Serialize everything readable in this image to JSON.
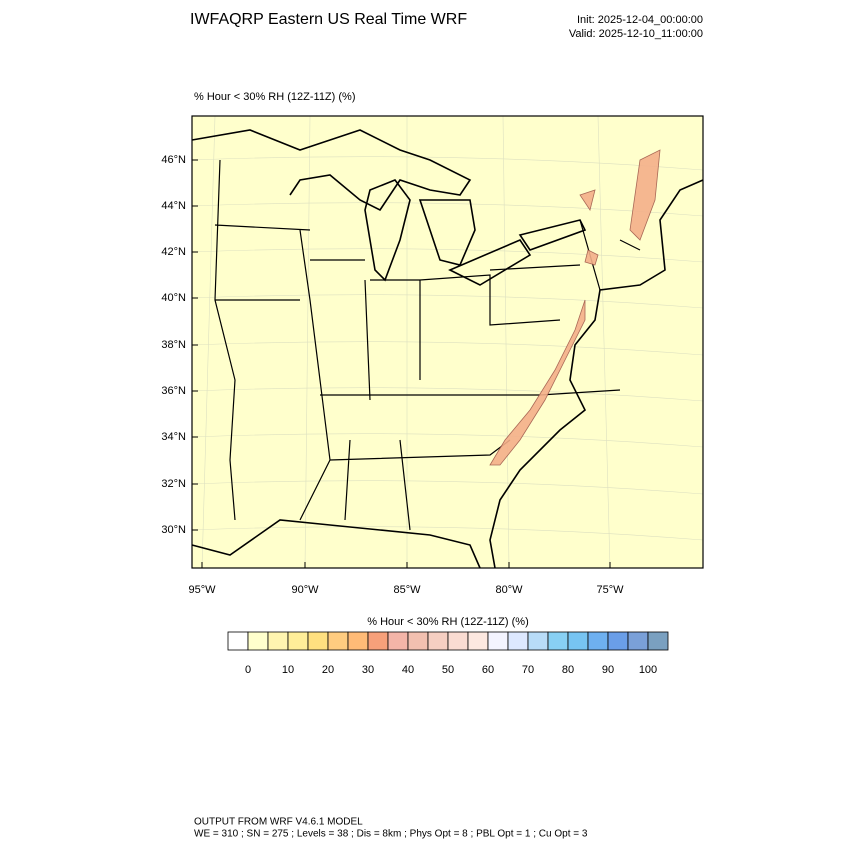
{
  "title": "IWFAQRP Eastern US Real Time WRF",
  "init": "Init: 2025-12-04_00:00:00",
  "valid": "Valid: 2025-12-10_11:00:00",
  "map": {
    "subtitle": "% Hour < 30% RH (12Z-11Z)   (%)",
    "lat_labels": [
      "46°N",
      "44°N",
      "42°N",
      "40°N",
      "38°N",
      "36°N",
      "34°N",
      "32°N",
      "30°N"
    ],
    "lon_labels": [
      "95°W",
      "90°W",
      "85°W",
      "80°W",
      "75°W"
    ]
  },
  "colorbar": {
    "title": "% Hour < 30% RH (12Z-11Z)  (%)",
    "ticks": [
      0,
      10,
      20,
      30,
      40,
      50,
      60,
      70,
      80,
      90,
      100
    ],
    "colors": [
      "#ffffff",
      "#ffffcc",
      "#fff5b0",
      "#ffee99",
      "#ffe080",
      "#ffcc80",
      "#ffbb77",
      "#f7a07a",
      "#f4b5a8",
      "#f2c0b0",
      "#f6cfc2",
      "#fadcd2",
      "#fde8e0",
      "#f4f4ff",
      "#dde8ff",
      "#b8dcf8",
      "#88d0f4",
      "#77c4f2",
      "#6eb0f0",
      "#6a9ee8",
      "#7aa0d8",
      "#7aa0c0"
    ]
  },
  "footer": [
    "OUTPUT FROM WRF V4.6.1 MODEL",
    "WE = 310 ; SN = 275 ; Levels = 38 ; Dis = 8km ; Phys Opt = 8 ; PBL Opt = 1 ; Cu Opt = 3"
  ]
}
